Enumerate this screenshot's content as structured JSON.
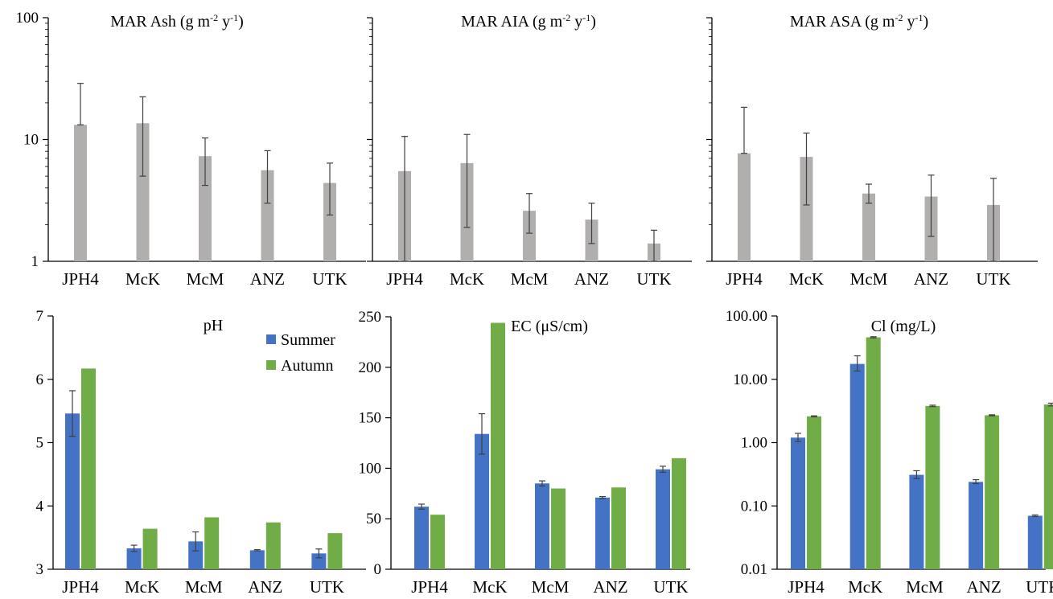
{
  "colors": {
    "ash_bar": "#b1aeae",
    "summer": "#4472c4",
    "autumn": "#70ad47",
    "axis": "#000000",
    "error_bar": "#404040"
  },
  "chart_data": [
    {
      "type": "bar",
      "title_parts": [
        "MAR Ash (g m",
        "-2",
        " y",
        "-1",
        ")"
      ],
      "categories": [
        "JPH4",
        "McK",
        "McM",
        "ANZ",
        "UTK"
      ],
      "scale": "log",
      "ylim": [
        1,
        100
      ],
      "yticks": [
        1,
        10,
        100
      ],
      "ytick_labels": [
        "1",
        "10",
        "100"
      ],
      "show_tick_labels": true,
      "series": [
        {
          "color_key": "ash_bar",
          "values": [
            13.2,
            13.6,
            7.3,
            5.6,
            4.4
          ],
          "err_low": [
            13.2,
            5.0,
            4.2,
            3.0,
            2.4
          ],
          "err_high": [
            28.9,
            22.4,
            10.3,
            8.1,
            6.4
          ]
        }
      ]
    },
    {
      "type": "bar",
      "title_parts": [
        "MAR AIA  (g m",
        "-2",
        " y",
        "-1",
        ")"
      ],
      "categories": [
        "JPH4",
        "McK",
        "McM",
        "ANZ",
        "UTK"
      ],
      "scale": "log",
      "ylim": [
        1,
        100
      ],
      "yticks": [
        1,
        10,
        100
      ],
      "ytick_labels": [
        "",
        "",
        ""
      ],
      "show_tick_labels": false,
      "series": [
        {
          "color_key": "ash_bar",
          "values": [
            5.5,
            6.4,
            2.6,
            2.2,
            1.4
          ],
          "err_low": [
            1.0,
            1.9,
            1.7,
            1.4,
            1.0
          ],
          "err_high": [
            10.6,
            11.0,
            3.6,
            3.0,
            1.8
          ]
        }
      ]
    },
    {
      "type": "bar",
      "title_parts": [
        "MAR ASA (g m",
        "-2",
        " y",
        "-1",
        ")"
      ],
      "categories": [
        "JPH4",
        "McK",
        "McM",
        "ANZ",
        "UTK"
      ],
      "scale": "log",
      "ylim": [
        1,
        100
      ],
      "yticks": [
        1,
        10,
        100
      ],
      "ytick_labels": [
        "",
        "",
        ""
      ],
      "show_tick_labels": false,
      "series": [
        {
          "color_key": "ash_bar",
          "values": [
            7.7,
            7.2,
            3.6,
            3.4,
            2.9
          ],
          "err_low": [
            7.7,
            2.9,
            3.0,
            1.6,
            1.0
          ],
          "err_high": [
            18.4,
            11.3,
            4.3,
            5.1,
            4.8
          ]
        }
      ]
    },
    {
      "type": "bar",
      "title": "pH",
      "categories": [
        "JPH4",
        "McK",
        "McM",
        "ANZ",
        "UTK"
      ],
      "scale": "linear",
      "ylim": [
        3,
        7
      ],
      "yticks": [
        3,
        4,
        5,
        6,
        7
      ],
      "ytick_labels": [
        "3",
        "4",
        "5",
        "6",
        "7"
      ],
      "show_tick_labels": true,
      "legend": {
        "position": "top-right",
        "entries": [
          "Summer",
          "Autumn"
        ]
      },
      "series": [
        {
          "name": "Summer",
          "color_key": "summer",
          "values": [
            5.46,
            3.33,
            3.44,
            3.3,
            3.25
          ],
          "err": [
            0.36,
            0.05,
            0.15,
            0.01,
            0.07
          ]
        },
        {
          "name": "Autumn",
          "color_key": "autumn",
          "values": [
            6.17,
            3.64,
            3.82,
            3.74,
            3.57
          ],
          "err": [
            0,
            0,
            0,
            0,
            0
          ]
        }
      ]
    },
    {
      "type": "bar",
      "title": "EC (μS/cm)",
      "categories": [
        "JPH4",
        "McK",
        "McM",
        "ANZ",
        "UTK"
      ],
      "scale": "linear",
      "ylim": [
        0,
        250
      ],
      "yticks": [
        0,
        50,
        100,
        150,
        200,
        250
      ],
      "ytick_labels": [
        "0",
        "50",
        "100",
        "150",
        "200",
        "250"
      ],
      "show_tick_labels": true,
      "series": [
        {
          "name": "Summer",
          "color_key": "summer",
          "values": [
            62,
            134,
            85,
            71,
            99
          ],
          "err": [
            2.5,
            20,
            2.5,
            1,
            3
          ]
        },
        {
          "name": "Autumn",
          "color_key": "autumn",
          "values": [
            54,
            244,
            80,
            81,
            110
          ],
          "err": [
            0,
            0,
            0,
            0,
            0
          ]
        }
      ]
    },
    {
      "type": "bar",
      "title": "Cl (mg/L)",
      "categories": [
        "JPH4",
        "McK",
        "McM",
        "ANZ",
        "UTK"
      ],
      "scale": "log",
      "ylim": [
        0.01,
        100
      ],
      "yticks": [
        0.01,
        0.1,
        1,
        10,
        100
      ],
      "ytick_labels": [
        "0.01",
        "0.10",
        "1.00",
        "10.00",
        "100.00"
      ],
      "show_tick_labels": true,
      "series": [
        {
          "name": "Summer",
          "color_key": "summer",
          "values": [
            1.2,
            17.5,
            0.31,
            0.24,
            0.07
          ],
          "err_low": [
            1.04,
            13.5,
            0.27,
            0.225,
            0.068
          ],
          "err_high": [
            1.4,
            23.5,
            0.36,
            0.26,
            0.072
          ]
        },
        {
          "name": "Autumn",
          "color_key": "autumn",
          "values": [
            2.6,
            46,
            3.8,
            2.7,
            4.0
          ],
          "err_low": [
            2.55,
            45,
            3.7,
            2.65,
            3.8
          ],
          "err_high": [
            2.65,
            47,
            3.9,
            2.75,
            4.2
          ]
        }
      ]
    }
  ]
}
